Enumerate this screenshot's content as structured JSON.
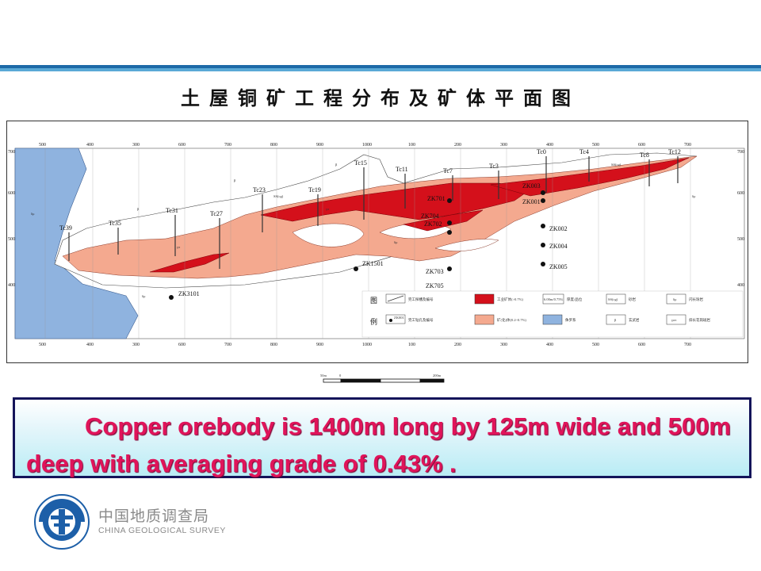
{
  "map": {
    "title": "土屋铜矿工程分布及矿体平面图",
    "top_ticks": [
      "500",
      "400",
      "300",
      "600",
      "700",
      "800",
      "900",
      "1000",
      "100",
      "200",
      "300",
      "400",
      "500",
      "600",
      "700"
    ],
    "bottom_ticks": [
      "500",
      "400",
      "300",
      "600",
      "700",
      "800",
      "900",
      "1000",
      "100",
      "200",
      "300",
      "400",
      "500",
      "600",
      "700"
    ],
    "left_ticks": [
      "700",
      "600",
      "500",
      "400"
    ],
    "right_ticks": [
      "700",
      "600",
      "500",
      "400"
    ],
    "trenches": [
      "Tc39",
      "Tc35",
      "Tc31",
      "Tc27",
      "Tc23",
      "Tc19",
      "Tc15",
      "Tc11",
      "Tc7",
      "Tc3",
      "Tc0",
      "Tc4",
      "Tc8",
      "Tc12"
    ],
    "boreholes": [
      "ZK3101",
      "ZK1501",
      "ZK705",
      "ZK703",
      "ZK702",
      "ZK704",
      "ZK701",
      "ZK002",
      "ZK004",
      "ZK005",
      "ZK003",
      "ZK001"
    ],
    "rock_codes": [
      "SS(cg)",
      "SS(cg)",
      "δμ",
      "β",
      "γπ",
      "δμ",
      "β",
      "γπ",
      "δμ",
      "β",
      "δμ"
    ],
    "legend": {
      "title_top": "图",
      "title_bottom": "例",
      "items": [
        {
          "label": "完工探槽及编号",
          "swatch": "trench"
        },
        {
          "label": "完工钻孔及编号",
          "swatch": "borehole",
          "symbol_text": "ZK001"
        },
        {
          "label": "工业矿体(>0.7%)",
          "swatch": "red"
        },
        {
          "label": "矿(化)体(0.2~0.7%)",
          "swatch": "salmon"
        },
        {
          "label": "厚度/品位",
          "swatch": "grade",
          "symbol_text": "6.00m/0.75%"
        },
        {
          "label": "侏罗系",
          "swatch": "blue"
        },
        {
          "label": "砂岩",
          "swatch": "box",
          "symbol_text": "SS(cg)"
        },
        {
          "label": "玄武岩",
          "swatch": "box",
          "symbol_text": "β"
        },
        {
          "label": "闪长玢岩",
          "swatch": "box",
          "symbol_text": "δμ"
        },
        {
          "label": "斜长花岗斑岩",
          "swatch": "box",
          "symbol_text": "γοπ"
        }
      ]
    },
    "scale": {
      "left": "50m",
      "zero": "0",
      "right": "200m"
    },
    "colors": {
      "industrial_ore": "#d4101b",
      "mineralized": "#f4a98f",
      "jurassic": "#8fb3df"
    }
  },
  "caption": {
    "text": "Copper orebody is 1400m long by 125m wide and 500m deep with averaging grade of 0.43% ."
  },
  "org": {
    "name_cn": "中国地质调查局",
    "name_en": "CHINA GEOLOGICAL SURVEY"
  }
}
